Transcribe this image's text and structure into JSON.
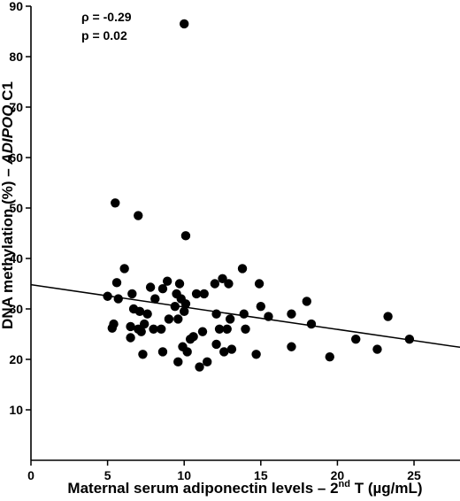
{
  "chart_data": {
    "type": "scatter",
    "xlabel_parts": {
      "pre": "Maternal serum adiponectin levels – 2",
      "sup": "nd",
      "post": " T (µg/mL)"
    },
    "ylabel_parts": {
      "pre": "DNA methylation (%) – ",
      "italic": "ADIPOQ",
      "post": " C1"
    },
    "xlim": [
      0,
      28
    ],
    "ylim": [
      0,
      90
    ],
    "xticks": [
      0,
      5,
      10,
      15,
      20,
      25
    ],
    "yticks": [
      10,
      20,
      30,
      40,
      50,
      60,
      70,
      80,
      90
    ],
    "grid": false,
    "annotations": [
      "ρ = -0.29",
      "p = 0.02"
    ],
    "regression_line": {
      "x": [
        0,
        28
      ],
      "y": [
        34.8,
        22.4
      ]
    },
    "points": [
      {
        "x": 5.0,
        "y": 32.5
      },
      {
        "x": 5.3,
        "y": 26.2
      },
      {
        "x": 5.4,
        "y": 27.0
      },
      {
        "x": 5.5,
        "y": 51.0
      },
      {
        "x": 5.6,
        "y": 35.2
      },
      {
        "x": 5.7,
        "y": 32.0
      },
      {
        "x": 6.1,
        "y": 38.0
      },
      {
        "x": 6.5,
        "y": 24.3
      },
      {
        "x": 6.5,
        "y": 26.5
      },
      {
        "x": 6.6,
        "y": 33.0
      },
      {
        "x": 6.7,
        "y": 30.0
      },
      {
        "x": 7.0,
        "y": 48.5
      },
      {
        "x": 7.0,
        "y": 26.0
      },
      {
        "x": 7.1,
        "y": 29.5
      },
      {
        "x": 7.2,
        "y": 25.5
      },
      {
        "x": 7.3,
        "y": 21.0
      },
      {
        "x": 7.4,
        "y": 27.0
      },
      {
        "x": 7.6,
        "y": 29.0
      },
      {
        "x": 7.8,
        "y": 34.3
      },
      {
        "x": 8.0,
        "y": 26.0
      },
      {
        "x": 8.1,
        "y": 32.0
      },
      {
        "x": 8.5,
        "y": 26.0
      },
      {
        "x": 8.6,
        "y": 21.5
      },
      {
        "x": 8.6,
        "y": 34.0
      },
      {
        "x": 8.9,
        "y": 35.5
      },
      {
        "x": 9.0,
        "y": 28.0
      },
      {
        "x": 9.4,
        "y": 30.5
      },
      {
        "x": 9.5,
        "y": 33.0
      },
      {
        "x": 9.6,
        "y": 28.0
      },
      {
        "x": 9.6,
        "y": 19.5
      },
      {
        "x": 9.7,
        "y": 35.0
      },
      {
        "x": 9.8,
        "y": 32.0
      },
      {
        "x": 9.9,
        "y": 22.5
      },
      {
        "x": 10.0,
        "y": 86.5
      },
      {
        "x": 10.0,
        "y": 29.5
      },
      {
        "x": 10.1,
        "y": 44.5
      },
      {
        "x": 10.1,
        "y": 31.0
      },
      {
        "x": 10.2,
        "y": 21.5
      },
      {
        "x": 10.4,
        "y": 24.0
      },
      {
        "x": 10.6,
        "y": 24.5
      },
      {
        "x": 10.8,
        "y": 33.0
      },
      {
        "x": 11.0,
        "y": 18.5
      },
      {
        "x": 11.2,
        "y": 25.5
      },
      {
        "x": 11.3,
        "y": 33.0
      },
      {
        "x": 11.5,
        "y": 19.5
      },
      {
        "x": 12.0,
        "y": 35.0
      },
      {
        "x": 12.1,
        "y": 29.0
      },
      {
        "x": 12.1,
        "y": 23.0
      },
      {
        "x": 12.3,
        "y": 26.0
      },
      {
        "x": 12.5,
        "y": 36.0
      },
      {
        "x": 12.6,
        "y": 21.5
      },
      {
        "x": 12.8,
        "y": 26.0
      },
      {
        "x": 12.9,
        "y": 35.0
      },
      {
        "x": 13.0,
        "y": 28.0
      },
      {
        "x": 13.1,
        "y": 22.0
      },
      {
        "x": 13.8,
        "y": 38.0
      },
      {
        "x": 13.9,
        "y": 29.0
      },
      {
        "x": 14.0,
        "y": 26.0
      },
      {
        "x": 14.7,
        "y": 21.0
      },
      {
        "x": 14.9,
        "y": 35.0
      },
      {
        "x": 15.0,
        "y": 30.5
      },
      {
        "x": 15.5,
        "y": 28.5
      },
      {
        "x": 17.0,
        "y": 22.5
      },
      {
        "x": 17.0,
        "y": 29.0
      },
      {
        "x": 18.0,
        "y": 31.5
      },
      {
        "x": 18.3,
        "y": 27.0
      },
      {
        "x": 19.5,
        "y": 20.5
      },
      {
        "x": 21.2,
        "y": 24.0
      },
      {
        "x": 22.6,
        "y": 22.0
      },
      {
        "x": 23.3,
        "y": 28.5
      },
      {
        "x": 24.7,
        "y": 24.0
      }
    ]
  }
}
